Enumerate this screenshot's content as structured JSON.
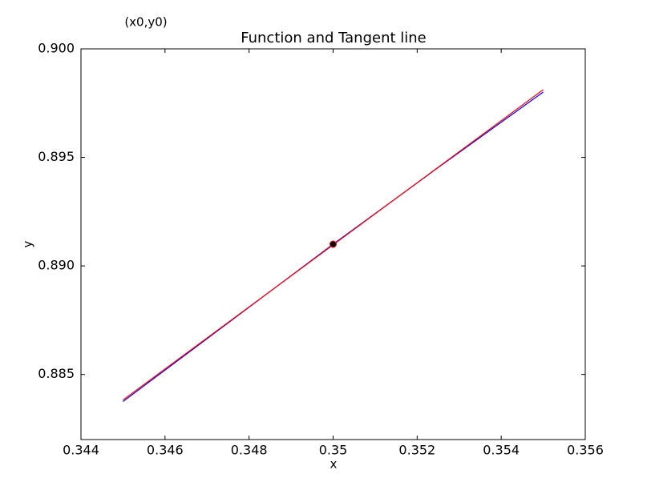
{
  "chart_data": {
    "type": "line",
    "title": "Function and Tangent line",
    "annotation": "(x0,y0)",
    "x_label": "x",
    "y_label": "y",
    "xlim": [
      0.344,
      0.356
    ],
    "xticks": [
      0.344,
      0.346,
      0.348,
      0.35,
      0.352,
      0.354,
      0.356
    ],
    "ylim": [
      0.882,
      0.9
    ],
    "yticks": [
      0.885,
      {
        "value": 0.89,
        "label": "0.890"
      },
      0.895,
      {
        "value": 0.9,
        "label": "0.900"
      }
    ],
    "grid": false,
    "series": [
      {
        "color": "#0000ff",
        "x": [
          0.345,
          0.3475,
          0.35,
          0.3525,
          0.355
        ],
        "values": [
          0.88375,
          0.88737,
          0.891,
          0.89453,
          0.89801
        ]
      },
      {
        "color": "#ff0000",
        "x": [
          0.345,
          0.355
        ],
        "values": [
          0.88382,
          0.89812
        ]
      },
      {
        "color": "#000000",
        "edge_color": "#ff0000",
        "marker": true,
        "x": [
          0.35
        ],
        "values": [
          0.891
        ]
      }
    ]
  }
}
